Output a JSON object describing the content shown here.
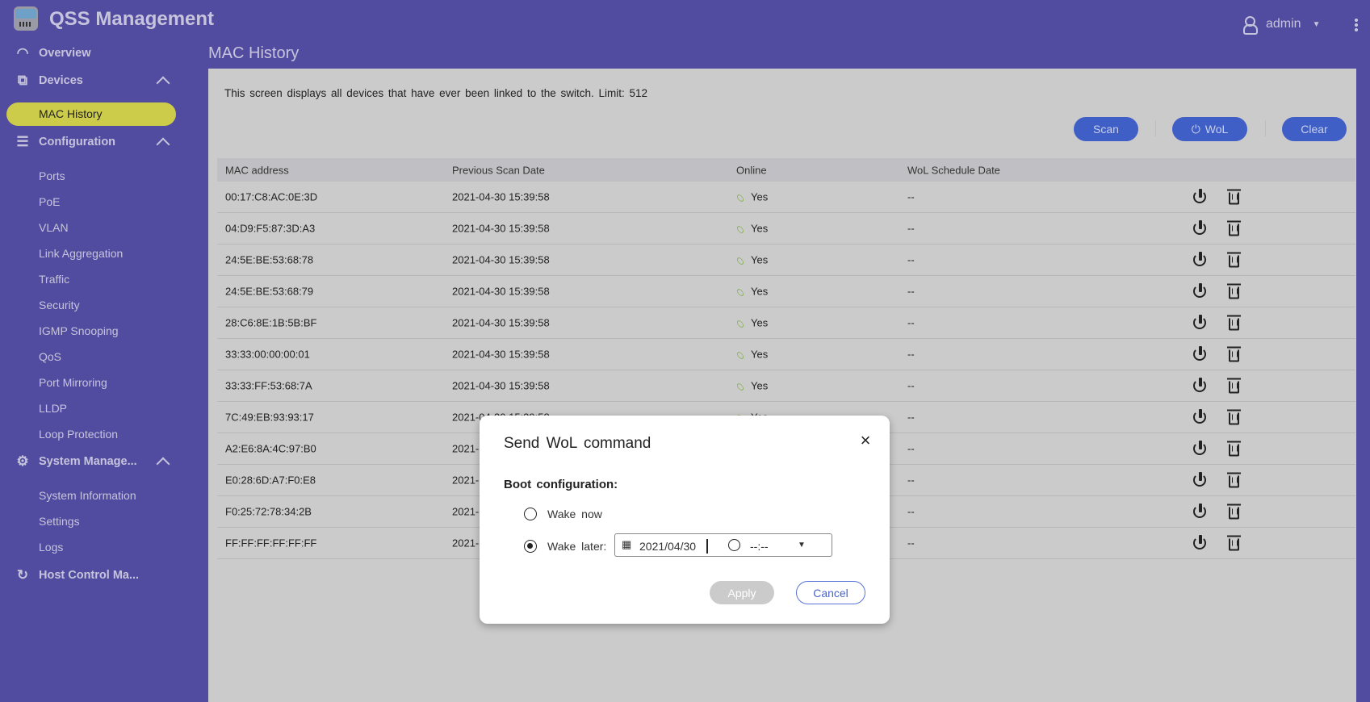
{
  "header": {
    "app_title": "QSS Management",
    "user": "admin"
  },
  "sidebar": {
    "overview": "Overview",
    "devices": {
      "label": "Devices",
      "items": [
        "MAC History"
      ]
    },
    "configuration": {
      "label": "Configuration",
      "items": [
        "Ports",
        "PoE",
        "VLAN",
        "Link Aggregation",
        "Traffic",
        "Security",
        "IGMP Snooping",
        "QoS",
        "Port Mirroring",
        "LLDP",
        "Loop Protection"
      ]
    },
    "system": {
      "label": "System Manage...",
      "items": [
        "System Information",
        "Settings",
        "Logs"
      ]
    },
    "host": "Host Control Ma..."
  },
  "page": {
    "title": "MAC History",
    "description": "This screen displays all devices that have ever been linked to the switch. Limit: 512",
    "buttons": {
      "scan": "Scan",
      "wol": "WoL",
      "clear": "Clear"
    },
    "table": {
      "columns": [
        "MAC address",
        "Previous Scan Date",
        "Online",
        "WoL Schedule Date"
      ],
      "rows": [
        {
          "mac": "00:17:C8:AC:0E:3D",
          "date": "2021-04-30  15:39:58",
          "online": "Yes",
          "wol": "--"
        },
        {
          "mac": "04:D9:F5:87:3D:A3",
          "date": "2021-04-30  15:39:58",
          "online": "Yes",
          "wol": "--"
        },
        {
          "mac": "24:5E:BE:53:68:78",
          "date": "2021-04-30  15:39:58",
          "online": "Yes",
          "wol": "--"
        },
        {
          "mac": "24:5E:BE:53:68:79",
          "date": "2021-04-30  15:39:58",
          "online": "Yes",
          "wol": "--"
        },
        {
          "mac": "28:C6:8E:1B:5B:BF",
          "date": "2021-04-30  15:39:58",
          "online": "Yes",
          "wol": "--"
        },
        {
          "mac": "33:33:00:00:00:01",
          "date": "2021-04-30  15:39:58",
          "online": "Yes",
          "wol": "--"
        },
        {
          "mac": "33:33:FF:53:68:7A",
          "date": "2021-04-30  15:39:58",
          "online": "Yes",
          "wol": "--"
        },
        {
          "mac": "7C:49:EB:93:93:17",
          "date": "2021-04-30  15:39:58",
          "online": "Yes",
          "wol": "--"
        },
        {
          "mac": "A2:E6:8A:4C:97:B0",
          "date": "2021-",
          "online": "",
          "wol": "--"
        },
        {
          "mac": "E0:28:6D:A7:F0:E8",
          "date": "2021-",
          "online": "",
          "wol": "--"
        },
        {
          "mac": "F0:25:72:78:34:2B",
          "date": "2021-",
          "online": "",
          "wol": "--"
        },
        {
          "mac": "FF:FF:FF:FF:FF:FF",
          "date": "2021-",
          "online": "",
          "wol": "--"
        }
      ]
    }
  },
  "modal": {
    "title": "Send WoL command",
    "boot_label": "Boot configuration:",
    "wake_now": "Wake now",
    "wake_later": "Wake later:",
    "selected": "wake_later",
    "date": "2021/04/30",
    "time": "--:--",
    "apply": "Apply",
    "cancel": "Cancel"
  },
  "colors": {
    "header": "#524ca0",
    "accent": "#3f5fc6",
    "active_item": "#cccc4a",
    "online": "#7fae4a"
  }
}
